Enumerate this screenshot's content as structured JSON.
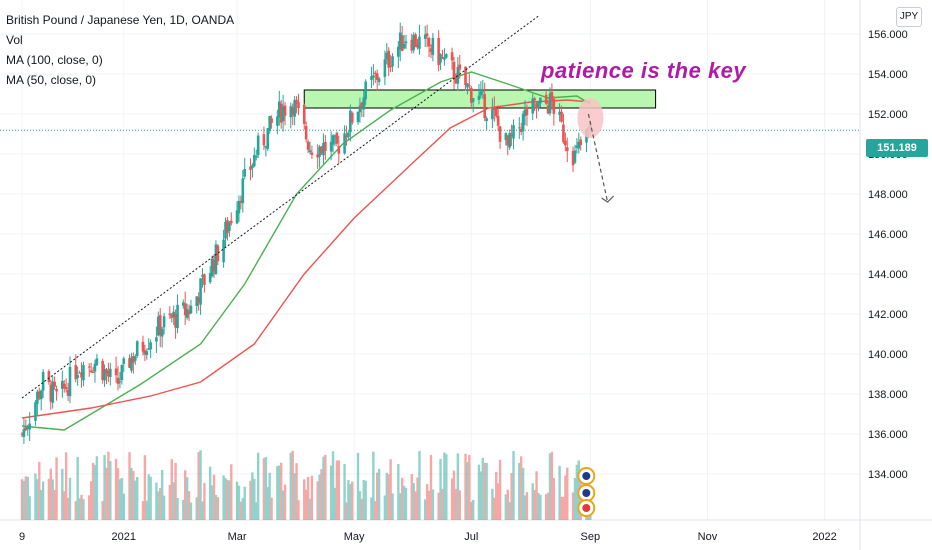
{
  "legend": {
    "symbol": "British Pound / Japanese Yen, 1D, OANDA",
    "vol": "Vol",
    "ma100": "MA (100, close, 0)",
    "ma50": "MA (50, close, 0)"
  },
  "currency_button": "JPY",
  "annotation": "patience is the key",
  "current_price": "151.189",
  "colors": {
    "up": "#26a69a",
    "down": "#ef5350",
    "ma100": "#ef5350",
    "ma50": "#4caf50",
    "zone_fill": "#b9f6b0",
    "annotation": "#b01aa7"
  },
  "chart_data": {
    "type": "candlestick",
    "symbol": "GBPJPY",
    "timeframe": "1D",
    "ylim": [
      132.5,
      157.0
    ],
    "y_ticks": [
      "134.000",
      "136.000",
      "138.000",
      "140.000",
      "142.000",
      "144.000",
      "146.000",
      "148.000",
      "150.000",
      "152.000",
      "154.000",
      "156.000"
    ],
    "x_ticks": [
      "9",
      "2021",
      "Mar",
      "May",
      "Jul",
      "Sep",
      "Nov",
      "2022"
    ],
    "price_path": [
      {
        "date": "2020-11-09",
        "price": 136.0
      },
      {
        "date": "2020-11-20",
        "price": 138.6
      },
      {
        "date": "2020-11-28",
        "price": 137.7
      },
      {
        "date": "2020-12-08",
        "price": 139.4
      },
      {
        "date": "2020-12-18",
        "price": 139.6
      },
      {
        "date": "2020-12-28",
        "price": 138.4
      },
      {
        "date": "2021-01-04",
        "price": 139.7
      },
      {
        "date": "2021-01-20",
        "price": 141.4
      },
      {
        "date": "2021-02-05",
        "price": 142.3
      },
      {
        "date": "2021-02-20",
        "price": 145.3
      },
      {
        "date": "2021-03-01",
        "price": 147.7
      },
      {
        "date": "2021-03-12",
        "price": 150.3
      },
      {
        "date": "2021-03-24",
        "price": 152.2
      },
      {
        "date": "2021-03-30",
        "price": 152.6
      },
      {
        "date": "2021-04-08",
        "price": 150.4
      },
      {
        "date": "2021-04-22",
        "price": 150.3
      },
      {
        "date": "2021-05-05",
        "price": 152.8
      },
      {
        "date": "2021-05-18",
        "price": 154.6
      },
      {
        "date": "2021-05-28",
        "price": 155.9
      },
      {
        "date": "2021-06-10",
        "price": 155.3
      },
      {
        "date": "2021-06-22",
        "price": 154.1
      },
      {
        "date": "2021-07-02",
        "price": 153.0
      },
      {
        "date": "2021-07-12",
        "price": 152.0
      },
      {
        "date": "2021-07-20",
        "price": 150.3
      },
      {
        "date": "2021-07-30",
        "price": 152.1
      },
      {
        "date": "2021-08-12",
        "price": 152.6
      },
      {
        "date": "2021-08-18",
        "price": 151.0
      },
      {
        "date": "2021-08-24",
        "price": 149.9
      },
      {
        "date": "2021-09-01",
        "price": 151.2
      }
    ],
    "ma100": [
      {
        "date": "2020-11-09",
        "value": 136.8
      },
      {
        "date": "2020-12-15",
        "value": 137.3
      },
      {
        "date": "2021-01-15",
        "value": 137.9
      },
      {
        "date": "2021-02-10",
        "value": 138.6
      },
      {
        "date": "2021-03-10",
        "value": 140.5
      },
      {
        "date": "2021-04-05",
        "value": 144.0
      },
      {
        "date": "2021-05-01",
        "value": 146.8
      },
      {
        "date": "2021-06-01",
        "value": 149.6
      },
      {
        "date": "2021-06-20",
        "value": 151.3
      },
      {
        "date": "2021-07-10",
        "value": 152.3
      },
      {
        "date": "2021-08-01",
        "value": 152.6
      },
      {
        "date": "2021-08-20",
        "value": 152.7
      },
      {
        "date": "2021-09-01",
        "value": 152.6
      }
    ],
    "ma50": [
      {
        "date": "2020-11-09",
        "value": 136.4
      },
      {
        "date": "2020-12-01",
        "value": 136.2
      },
      {
        "date": "2020-12-15",
        "value": 137.0
      },
      {
        "date": "2021-01-10",
        "value": 138.5
      },
      {
        "date": "2021-02-10",
        "value": 140.5
      },
      {
        "date": "2021-03-05",
        "value": 143.5
      },
      {
        "date": "2021-04-01",
        "value": 148.0
      },
      {
        "date": "2021-04-25",
        "value": 150.5
      },
      {
        "date": "2021-05-20",
        "value": 152.2
      },
      {
        "date": "2021-06-15",
        "value": 153.6
      },
      {
        "date": "2021-07-01",
        "value": 154.1
      },
      {
        "date": "2021-07-20",
        "value": 153.5
      },
      {
        "date": "2021-08-10",
        "value": 152.8
      },
      {
        "date": "2021-08-25",
        "value": 152.9
      },
      {
        "date": "2021-09-01",
        "value": 152.5
      }
    ],
    "resistance_zone": {
      "start": "2021-04-05",
      "end": "2021-10-05",
      "low": 152.3,
      "high": 153.2
    },
    "trendline": {
      "start": {
        "date": "2020-11-09",
        "price": 137.8
      },
      "end": {
        "date": "2021-08-05",
        "price": 156.9
      }
    },
    "projection_arrow": {
      "start": {
        "date": "2021-08-31",
        "price": 152.0
      },
      "end": {
        "date": "2021-09-10",
        "price": 147.6
      }
    },
    "current_price": 151.189
  }
}
